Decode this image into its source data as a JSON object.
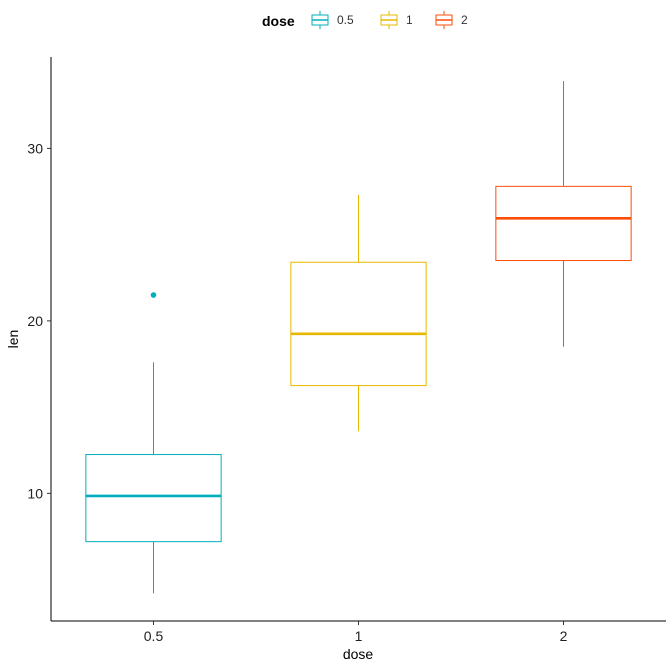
{
  "chart_data": {
    "type": "boxplot",
    "xlabel": "dose",
    "ylabel": "len",
    "categories": [
      "0.5",
      "1",
      "2"
    ],
    "y_ticks": [
      10,
      20,
      30
    ],
    "ylim": [
      2.6,
      35.3
    ],
    "grid": false,
    "legend": {
      "title": "dose",
      "position": "top",
      "entries": [
        "0.5",
        "1",
        "2"
      ]
    },
    "series": [
      {
        "name": "0.5",
        "color": "#00AFBB",
        "min": 4.2,
        "q1": 7.2,
        "median": 9.85,
        "q3": 12.25,
        "max": 17.6,
        "outliers": [
          21.5
        ]
      },
      {
        "name": "1",
        "color": "#E7B800",
        "min": 13.6,
        "q1": 16.25,
        "median": 19.25,
        "q3": 23.4,
        "max": 27.3,
        "outliers": []
      },
      {
        "name": "2",
        "color": "#FC4E07",
        "min": 18.5,
        "q1": 23.5,
        "median": 25.95,
        "q3": 27.8,
        "max": 33.9,
        "outliers": []
      }
    ]
  }
}
